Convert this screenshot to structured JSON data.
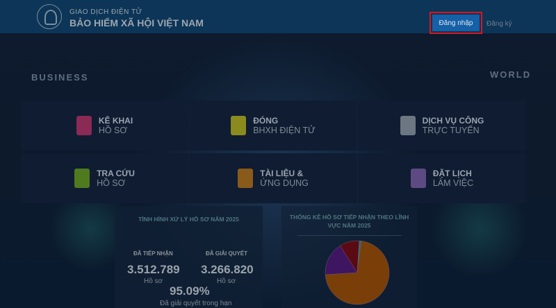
{
  "background": {
    "decor_1": "BUSINESS",
    "decor_2": "WORLD"
  },
  "header": {
    "subtitle": "GIAO DỊCH ĐIỆN TỬ",
    "title": "BẢO HIỂM XÃ HỘI VIỆT NAM",
    "login": "Đăng nhập",
    "register": "Đăng ký"
  },
  "tiles": [
    {
      "title": "KÊ KHAI",
      "sub": "HỒ SƠ",
      "icon": "document-edit-icon",
      "color": "#8a2a55"
    },
    {
      "title": "ĐÓNG",
      "sub": "BHXH ĐIỆN TỬ",
      "icon": "payment-icon",
      "color": "#8a8a1e"
    },
    {
      "title": "DỊCH VỤ CÔNG",
      "sub": "TRỰC TUYẾN",
      "icon": "globe-computer-icon",
      "color": "#6d7783"
    },
    {
      "title": "TRA CỨU",
      "sub": "HỒ SƠ",
      "icon": "monitor-search-icon",
      "color": "#4f7a1e"
    },
    {
      "title": "TÀI LIỆU &",
      "sub": "ỨNG DỤNG",
      "icon": "book-play-icon",
      "color": "#8a5a1a"
    },
    {
      "title": "ĐẶT LỊCH",
      "sub": "LÀM VIỆC",
      "icon": "calendar-clock-icon",
      "color": "#5e4a82"
    }
  ],
  "stats": {
    "title": "TÌNH HÌNH XỬ LÝ HỒ SƠ NĂM 2025",
    "received_label": "ĐÃ TIẾP NHẬN",
    "received": "3.512.789",
    "received_unit": "Hồ sơ",
    "resolved_label": "ĐÃ GIẢI QUYẾT",
    "resolved": "3.266.820",
    "resolved_unit": "Hồ sơ",
    "percent": "95.09%",
    "percent_label": "Đã giải quyết trong hạn"
  },
  "chart_data": {
    "type": "pie",
    "title": "THỐNG KÊ HỒ SƠ TIẾP NHẬN THEO LĨNH VỰC NĂM 2025",
    "values": [
      72,
      17,
      10,
      1
    ],
    "colors": [
      "#7a3e08",
      "#3e1560",
      "#5a0a12",
      "#2d6a70"
    ]
  }
}
